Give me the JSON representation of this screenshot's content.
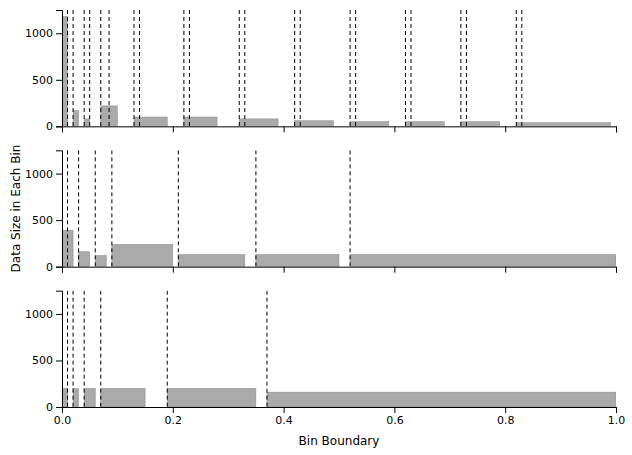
{
  "chart_data": [
    {
      "type": "bar",
      "x": [
        0.0,
        0.02,
        0.04,
        0.07,
        0.13,
        0.22,
        0.32,
        0.42,
        0.52,
        0.62,
        0.72,
        0.82
      ],
      "widths": [
        0.01,
        0.01,
        0.01,
        0.03,
        0.06,
        0.06,
        0.07,
        0.07,
        0.07,
        0.07,
        0.07,
        0.17
      ],
      "values": [
        1180,
        170,
        80,
        220,
        100,
        100,
        80,
        60,
        50,
        50,
        50,
        40
      ],
      "color": "#aaaaaa",
      "vlines": {
        "x": [
          0.01,
          0.02,
          0.04,
          0.05,
          0.07,
          0.085,
          0.13,
          0.14,
          0.22,
          0.23,
          0.32,
          0.33,
          0.42,
          0.43,
          0.52,
          0.53,
          0.62,
          0.63,
          0.72,
          0.73,
          0.82,
          0.83
        ],
        "color": "black",
        "line_style": "dashed"
      },
      "xlim": [
        0.0,
        1.0
      ],
      "ylim": [
        0,
        1250
      ],
      "xticks": [
        0.0,
        0.2,
        0.4,
        0.6,
        0.8,
        1.0
      ],
      "yticks": [
        0,
        500,
        1000
      ],
      "tick_labels": "y"
    },
    {
      "type": "bar",
      "x": [
        0.0,
        0.03,
        0.06,
        0.09,
        0.21,
        0.35,
        0.52
      ],
      "widths": [
        0.02,
        0.02,
        0.02,
        0.11,
        0.12,
        0.15,
        0.48
      ],
      "values": [
        390,
        160,
        120,
        240,
        130,
        130,
        130
      ],
      "color": "#aaaaaa",
      "vlines": {
        "x": [
          0.01,
          0.03,
          0.06,
          0.09,
          0.21,
          0.35,
          0.52
        ],
        "color": "black",
        "line_style": "dashed"
      },
      "xlim": [
        0.0,
        1.0
      ],
      "ylim": [
        0,
        1250
      ],
      "xticks": [
        0.0,
        0.2,
        0.4,
        0.6,
        0.8,
        1.0
      ],
      "yticks": [
        0,
        500,
        1000
      ],
      "tick_labels": "y",
      "ylabel": "Data Size in Each Bin"
    },
    {
      "type": "bar",
      "x": [
        0.0,
        0.02,
        0.04,
        0.07,
        0.19,
        0.37
      ],
      "widths": [
        0.01,
        0.01,
        0.02,
        0.08,
        0.16,
        0.63
      ],
      "values": [
        200,
        200,
        200,
        200,
        200,
        160
      ],
      "color": "#aaaaaa",
      "vlines": {
        "x": [
          0.01,
          0.02,
          0.04,
          0.07,
          0.19,
          0.37
        ],
        "color": "black",
        "line_style": "dashed"
      },
      "xlim": [
        0.0,
        1.0
      ],
      "ylim": [
        0,
        1250
      ],
      "xticks": [
        {
          "value": 0.0,
          "label": "0.0"
        },
        {
          "value": 0.2,
          "label": "0.2"
        },
        {
          "value": 0.4,
          "label": "0.4"
        },
        {
          "value": 0.6,
          "label": "0.6"
        },
        {
          "value": 0.8,
          "label": "0.8"
        },
        {
          "value": 1.0,
          "label": "1.0"
        }
      ],
      "yticks": [
        0,
        500,
        1000
      ],
      "xlabel": "Bin Boundary"
    }
  ]
}
